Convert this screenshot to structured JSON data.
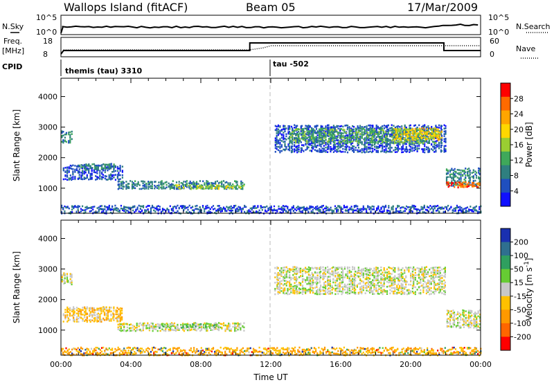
{
  "header": {
    "station": "Wallops Island (fitACF)",
    "beam": "Beam 05",
    "date": "17/Mar/2009"
  },
  "top_panels": {
    "nsky_label": "N.Sky",
    "nsky_ticks": [
      "10^5",
      "10^0"
    ],
    "nsearch_label": "N.Search",
    "nsearch_ticks": [
      "10^5",
      "10^0"
    ],
    "freq_label": "Freq.",
    "freq_unit": "[MHz]",
    "freq_ticks": [
      "18",
      "8"
    ],
    "nave_label": "Nave",
    "nave_ticks": [
      "60",
      "0"
    ],
    "cpid_label": "CPID",
    "modes": [
      {
        "name": "themis (tau) 3310",
        "start_hour": 0
      },
      {
        "name": "tau -502",
        "start_hour": 12
      }
    ]
  },
  "chart_data": [
    {
      "type": "heatmap",
      "panel": "power",
      "ylabel": "Slant Range [km]",
      "xlabel": "",
      "x_ticks": [
        "00:00",
        "04:00",
        "08:00",
        "12:00",
        "16:00",
        "20:00",
        "00:00"
      ],
      "y_ticks": [
        1000,
        2000,
        3000,
        4000
      ],
      "xlim_hours": [
        0,
        24
      ],
      "ylim_km": [
        180,
        4600
      ],
      "colorbar_label": "Power [dB]",
      "colorbar_ticks": [
        4,
        8,
        12,
        16,
        20,
        24,
        28
      ],
      "colorbar_range": [
        0,
        32
      ],
      "colors": [
        "#1010ff",
        "#1f4fbf",
        "#2f7f7f",
        "#3fa85a",
        "#9acd32",
        "#ffd700",
        "#ffa500",
        "#ff6a00",
        "#ff0000"
      ],
      "echo_bands": [
        {
          "t0": 0.0,
          "t1": 0.6,
          "r0": 2500,
          "r1": 2900,
          "level": 2
        },
        {
          "t0": 0.1,
          "t1": 3.5,
          "r0": 1300,
          "r1": 1800,
          "level": 1
        },
        {
          "t0": 1.0,
          "t1": 3.2,
          "r0": 1650,
          "r1": 1850,
          "level": 2
        },
        {
          "t0": 3.2,
          "t1": 10.5,
          "r0": 1000,
          "r1": 1250,
          "level": 2
        },
        {
          "t0": 6.5,
          "t1": 10.5,
          "r0": 1000,
          "r1": 1150,
          "level": 4
        },
        {
          "t0": 12.2,
          "t1": 22.0,
          "r0": 2200,
          "r1": 3100,
          "level": 1
        },
        {
          "t0": 13.0,
          "t1": 21.5,
          "r0": 2500,
          "r1": 3000,
          "level": 3
        },
        {
          "t0": 19.0,
          "t1": 21.8,
          "r0": 2600,
          "r1": 3000,
          "level": 5
        },
        {
          "t0": 22.0,
          "t1": 24.0,
          "r0": 1100,
          "r1": 1700,
          "level": 2
        },
        {
          "t0": 22.0,
          "t1": 24.0,
          "r0": 1050,
          "r1": 1250,
          "level": 7
        }
      ]
    },
    {
      "type": "heatmap",
      "panel": "velocity",
      "ylabel": "Slant Range [km]",
      "xlabel": "Time UT",
      "x_ticks": [
        "00:00",
        "04:00",
        "08:00",
        "12:00",
        "16:00",
        "20:00",
        "00:00"
      ],
      "y_ticks": [
        1000,
        2000,
        3000,
        4000
      ],
      "xlim_hours": [
        0,
        24
      ],
      "ylim_km": [
        180,
        4600
      ],
      "colorbar_label": "Velocity [m s^-1]",
      "colorbar_ticks": [
        "200",
        "100",
        "50",
        "15",
        "-15",
        "-50",
        "-100",
        "-200"
      ],
      "colors": [
        "#1a30b0",
        "#2f6f8f",
        "#2f9f5f",
        "#66cc33",
        "#c8c8c8",
        "#ffc000",
        "#ff9900",
        "#ff6600",
        "#ff0000"
      ],
      "echo_bands": [
        {
          "t0": 0.0,
          "t1": 0.6,
          "r0": 2500,
          "r1": 2900,
          "level": 4
        },
        {
          "t0": 0.1,
          "t1": 3.5,
          "r0": 1300,
          "r1": 1800,
          "level": 5
        },
        {
          "t0": 3.2,
          "t1": 10.5,
          "r0": 1000,
          "r1": 1250,
          "level": 4
        },
        {
          "t0": 5.5,
          "t1": 9.0,
          "r0": 1100,
          "r1": 1250,
          "level": 3
        },
        {
          "t0": 12.2,
          "t1": 22.0,
          "r0": 2200,
          "r1": 3100,
          "level": 4
        },
        {
          "t0": 22.0,
          "t1": 24.0,
          "r0": 1100,
          "r1": 1700,
          "level": 4
        }
      ]
    }
  ]
}
